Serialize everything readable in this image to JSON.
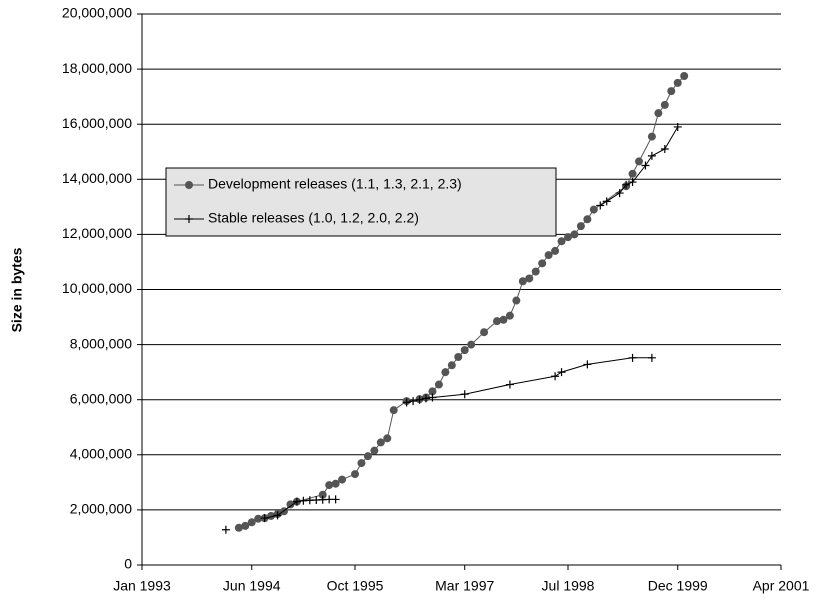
{
  "chart_data": {
    "type": "line",
    "y_label": "Size in bytes",
    "legend": "center left",
    "grid": true,
    "ylim": [
      0,
      20000000
    ],
    "yticks": [
      0,
      {
        "value": 2000000,
        "label": "2,000,000"
      },
      {
        "value": 4000000,
        "label": "4,000,000"
      },
      {
        "value": 6000000,
        "label": "6,000,000"
      },
      {
        "value": 8000000,
        "label": "8,000,000"
      },
      {
        "value": 10000000,
        "label": "10,000,000"
      },
      {
        "value": 12000000,
        "label": "12,000,000"
      },
      {
        "value": 14000000,
        "label": "14,000,000"
      },
      {
        "value": 16000000,
        "label": "16,000,000"
      },
      {
        "value": 18000000,
        "label": "18,000,000"
      },
      {
        "value": 20000000,
        "label": "20,000,000"
      }
    ],
    "xlim": [
      "1993-01",
      "2001-04"
    ],
    "xticks": [
      {
        "value": "1993-01",
        "label": "Jan 1993"
      },
      {
        "value": "1994-06",
        "label": "Jun 1994"
      },
      {
        "value": "1995-10",
        "label": "Oct 1995"
      },
      {
        "value": "1997-03",
        "label": "Mar 1997"
      },
      {
        "value": "1998-07",
        "label": "Jul 1998"
      },
      {
        "value": "1999-12",
        "label": "Dec 1999"
      },
      {
        "value": "2001-04",
        "label": "Apr 2001"
      }
    ],
    "series": [
      {
        "name": "Development releases (1.1, 1.3, 2.1, 2.3)",
        "color": "#555555",
        "marker": "circle",
        "x": [
          "1994-04",
          "1994-05",
          "1994-06",
          "1994-07",
          "1994-08",
          "1994-09",
          "1994-10",
          "1994-11",
          "1994-12",
          "1995-01",
          "1995-05",
          "1995-06",
          "1995-07",
          "1995-08",
          "1995-10",
          "1995-11",
          "1995-12",
          "1996-01",
          "1996-02",
          "1996-03",
          "1996-04",
          "1996-06",
          "1996-08",
          "1996-09",
          "1996-10",
          "1996-11",
          "1996-12",
          "1997-01",
          "1997-02",
          "1997-03",
          "1997-04",
          "1997-06",
          "1997-08",
          "1997-09",
          "1997-10",
          "1997-11",
          "1997-12",
          "1998-01",
          "1998-02",
          "1998-03",
          "1998-04",
          "1998-05",
          "1998-06",
          "1998-07",
          "1998-08",
          "1998-09",
          "1998-10",
          "1998-11",
          "1999-04",
          "1999-05",
          "1999-06",
          "1999-08",
          "1999-09",
          "1999-10",
          "1999-11",
          "1999-12",
          "2000-01"
        ],
        "values": [
          1350000,
          1420000,
          1550000,
          1680000,
          1700000,
          1780000,
          1850000,
          1950000,
          2200000,
          2300000,
          2550000,
          2900000,
          2950000,
          3100000,
          3300000,
          3700000,
          3950000,
          4150000,
          4450000,
          4600000,
          5620000,
          5950000,
          6020000,
          6080000,
          6300000,
          6550000,
          7000000,
          7250000,
          7550000,
          7800000,
          8000000,
          8450000,
          8850000,
          8900000,
          9050000,
          9600000,
          10300000,
          10400000,
          10650000,
          10950000,
          11250000,
          11400000,
          11750000,
          11900000,
          12000000,
          12300000,
          12550000,
          12900000,
          13750000,
          14200000,
          14650000,
          15550000,
          16400000,
          16700000,
          17200000,
          17500000,
          17750000
        ]
      },
      {
        "name": "Stable releases (1.0, 1.2, 2.0, 2.2)",
        "color": "#000000",
        "marker": "plus",
        "x": [
          "1994-02",
          null,
          "1994-08",
          "1994-10",
          "1995-01",
          "1995-02",
          "1995-03",
          "1995-04",
          "1995-05",
          "1995-06",
          "1995-07",
          null,
          "1996-06",
          "1996-07",
          "1996-08",
          "1996-09",
          "1996-10",
          "1997-03",
          "1997-10",
          "1998-05",
          "1998-06",
          "1998-10",
          "1999-05",
          "1999-08",
          null,
          "1998-12",
          "1999-01",
          "1999-03",
          "1999-04",
          "1999-05",
          "1999-07",
          "1999-08",
          "1999-10",
          "1999-12"
        ],
        "values": [
          1280000,
          null,
          1700000,
          1800000,
          2300000,
          2330000,
          2350000,
          2360000,
          2370000,
          2380000,
          2380000,
          null,
          5900000,
          5950000,
          6000000,
          6050000,
          6080000,
          6200000,
          6550000,
          6850000,
          7000000,
          7280000,
          7520000,
          7520000,
          null,
          13050000,
          13200000,
          13500000,
          13800000,
          13900000,
          14500000,
          14850000,
          15100000,
          15900000
        ]
      }
    ]
  }
}
